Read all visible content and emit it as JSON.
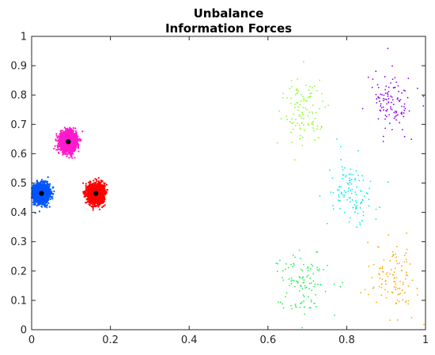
{
  "chart_data": {
    "type": "scatter",
    "title": [
      "Unbalance",
      "Information Forces"
    ],
    "xlabel": "",
    "ylabel": "",
    "xlim": [
      0,
      1
    ],
    "ylim": [
      0,
      1
    ],
    "xticks": [
      "0",
      "0.2",
      "0.4",
      "0.6",
      "0.8",
      "1"
    ],
    "xtick_values": [
      0,
      0.2,
      0.4,
      0.6,
      0.8,
      1
    ],
    "yticks": [
      "0",
      "0.1",
      "0.2",
      "0.3",
      "0.4",
      "0.5",
      "0.6",
      "0.7",
      "0.8",
      "0.9",
      "1"
    ],
    "ytick_values": [
      0,
      0.1,
      0.2,
      0.3,
      0.4,
      0.5,
      0.6,
      0.7,
      0.8,
      0.9,
      1
    ],
    "grid": false,
    "legend": "none",
    "clusters": [
      {
        "color": "#0055ff",
        "center": [
          0.025,
          0.465
        ],
        "spread": [
          0.01,
          0.016
        ],
        "count": 2000,
        "dense": true
      },
      {
        "color": "#ff1acc",
        "center": [
          0.093,
          0.641
        ],
        "spread": [
          0.01,
          0.016
        ],
        "count": 2000,
        "dense": true
      },
      {
        "color": "#ff0000",
        "center": [
          0.163,
          0.465
        ],
        "spread": [
          0.01,
          0.016
        ],
        "count": 2000,
        "dense": true
      },
      {
        "color": "#88ff22",
        "center": [
          0.69,
          0.745
        ],
        "spread": [
          0.03,
          0.06
        ],
        "count": 110,
        "dense": false
      },
      {
        "color": "#8800ee",
        "center": [
          0.915,
          0.77
        ],
        "spread": [
          0.025,
          0.05
        ],
        "count": 110,
        "dense": false
      },
      {
        "color": "#00eeee",
        "center": [
          0.81,
          0.465
        ],
        "spread": [
          0.03,
          0.055
        ],
        "count": 110,
        "dense": false
      },
      {
        "color": "#22ee55",
        "center": [
          0.69,
          0.165
        ],
        "spread": [
          0.03,
          0.055
        ],
        "count": 110,
        "dense": false
      },
      {
        "color": "#ffaa00",
        "center": [
          0.915,
          0.175
        ],
        "spread": [
          0.03,
          0.055
        ],
        "count": 110,
        "dense": false
      }
    ],
    "centroids": [
      {
        "x": 0.025,
        "y": 0.465,
        "color": "#000000"
      },
      {
        "x": 0.093,
        "y": 0.641,
        "color": "#000000"
      },
      {
        "x": 0.163,
        "y": 0.465,
        "color": "#000000"
      }
    ]
  }
}
